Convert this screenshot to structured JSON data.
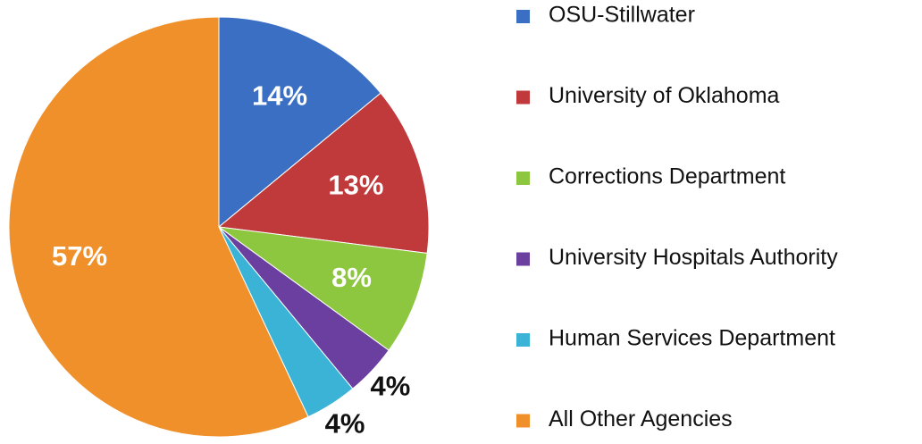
{
  "chart_data": {
    "type": "pie",
    "categories": [
      "OSU-Stillwater",
      "University of Oklahoma",
      "Corrections Department",
      "University Hospitals Authority",
      "Human Services Department",
      "All Other Agencies"
    ],
    "values": [
      14,
      13,
      8,
      4,
      4,
      57
    ],
    "value_labels": [
      "14%",
      "13%",
      "8%",
      "4%",
      "4%",
      "57%"
    ],
    "colors": [
      "#3a6fc4",
      "#c0393b",
      "#8dc63f",
      "#6a3fa0",
      "#3bb3d6",
      "#f0902a"
    ],
    "legend": "right"
  }
}
